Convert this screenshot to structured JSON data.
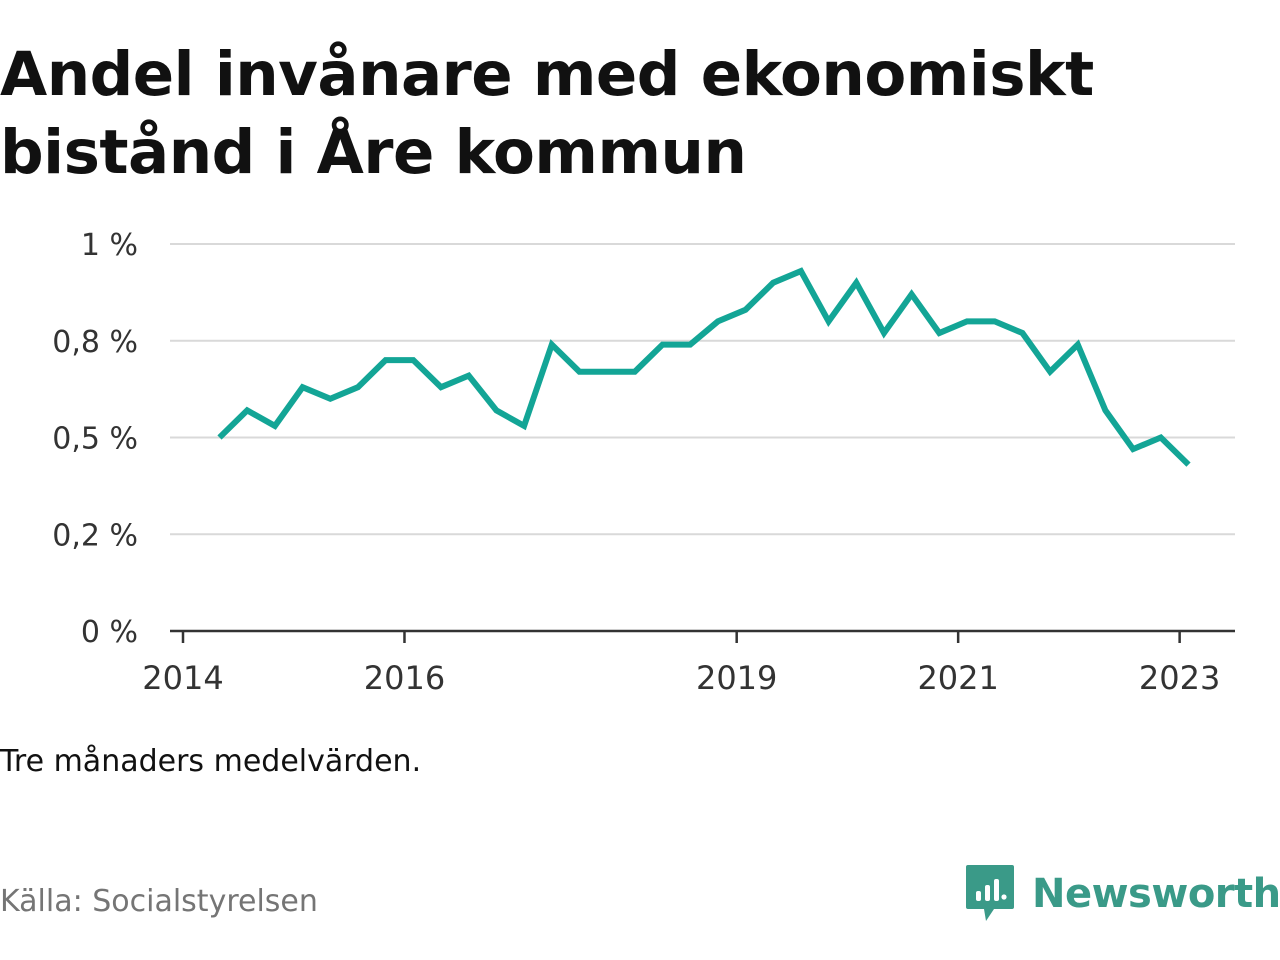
{
  "title": "Andel invånare med ekonomiskt bistånd i Åre kommun",
  "note": "Tre månaders medelvärden.",
  "source": "Källa: Socialstyrelsen",
  "brand": {
    "name": "Newsworthy",
    "icon": "newsworthy-logo-icon",
    "color": "#3a9a88"
  },
  "colors": {
    "line": "#13a596",
    "grid": "#d9d9d9",
    "axis": "#333333"
  },
  "chart_data": {
    "type": "line",
    "title": "Andel invånare med ekonomiskt bistånd i Åre kommun",
    "xlabel": "",
    "ylabel": "",
    "ylim": [
      0,
      1.0
    ],
    "xlim": [
      2014.0,
      2023.5
    ],
    "yticks": [
      0,
      0.25,
      0.5,
      0.75,
      1.0
    ],
    "ytick_labels": [
      "0 %",
      "0,2 %",
      "0,5 %",
      "0,8 %",
      "1 %"
    ],
    "xticks": [
      2014,
      2016,
      2019,
      2021,
      2023
    ],
    "xtick_labels": [
      "2014",
      "2016",
      "2019",
      "2021",
      "2023"
    ],
    "grid": true,
    "legend": "none",
    "series": [
      {
        "x": [
          2014.33,
          2014.58,
          2014.83,
          2015.08,
          2015.33,
          2015.58,
          2015.83,
          2016.08,
          2016.33,
          2016.58,
          2016.83,
          2017.08,
          2017.33,
          2017.58,
          2017.83,
          2018.08,
          2018.33,
          2018.58,
          2018.83,
          2019.08,
          2019.33,
          2019.58,
          2019.83,
          2020.08,
          2020.33,
          2020.58,
          2020.83,
          2021.08,
          2021.33,
          2021.58,
          2021.83,
          2022.08,
          2022.33,
          2022.58,
          2022.83,
          2023.08
        ],
        "values": [
          0.5,
          0.57,
          0.53,
          0.63,
          0.6,
          0.63,
          0.7,
          0.7,
          0.63,
          0.66,
          0.57,
          0.53,
          0.74,
          0.67,
          0.67,
          0.67,
          0.74,
          0.74,
          0.8,
          0.83,
          0.9,
          0.93,
          0.8,
          0.9,
          0.77,
          0.87,
          0.77,
          0.8,
          0.8,
          0.77,
          0.67,
          0.74,
          0.57,
          0.47,
          0.5,
          0.43
        ]
      }
    ]
  }
}
